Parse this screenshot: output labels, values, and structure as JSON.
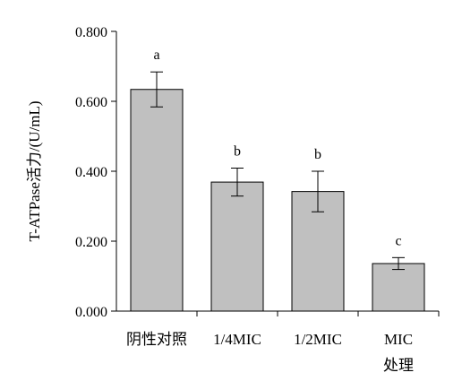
{
  "chart_data": {
    "type": "bar",
    "title": "",
    "xlabel": "处理",
    "ylabel": "T-ATPase活力/(U/mL)",
    "categories": [
      "阴性对照",
      "1/4MIC",
      "1/2MIC",
      "MIC"
    ],
    "values": [
      0.634,
      0.369,
      0.342,
      0.136
    ],
    "error": [
      0.05,
      0.04,
      0.058,
      0.017
    ],
    "significance": [
      "a",
      "b",
      "b",
      "c"
    ],
    "ylim": [
      0,
      0.8
    ],
    "yticks": [
      0,
      0.2,
      0.4,
      0.6,
      0.8
    ],
    "ytick_labels": [
      "0.000",
      "0.200",
      "0.400",
      "0.600",
      "0.800"
    ],
    "bar_color": "#c0c0c0",
    "bar_edge_color": "#000000",
    "grid": false,
    "legend": "none"
  }
}
